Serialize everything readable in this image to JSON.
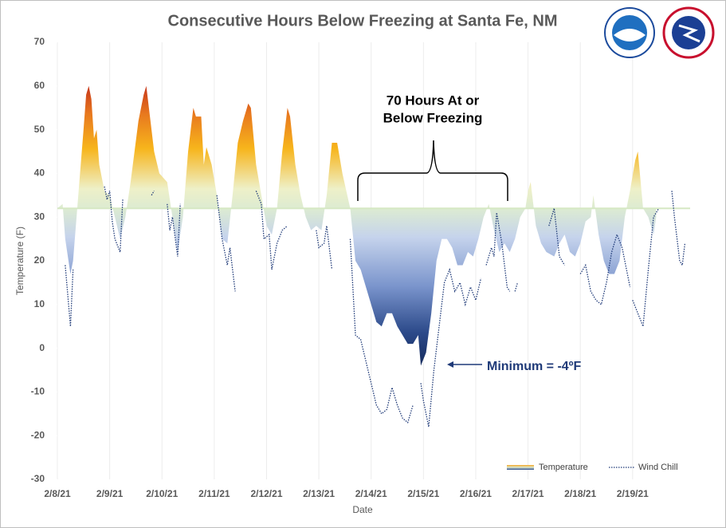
{
  "chart_data": {
    "type": "area",
    "title": "Consecutive Hours Below Freezing at Santa Fe, NM",
    "xlabel": "Date",
    "ylabel": "Temperature (F)",
    "threshold": 32,
    "xlim": [
      0,
      12.1
    ],
    "xticks": [
      {
        "value": 0,
        "label": "2/8/21"
      },
      {
        "value": 1,
        "label": "2/9/21"
      },
      {
        "value": 2,
        "label": "2/10/21"
      },
      {
        "value": 3,
        "label": "2/11/21"
      },
      {
        "value": 4,
        "label": "2/12/21"
      },
      {
        "value": 5,
        "label": "2/13/21"
      },
      {
        "value": 6,
        "label": "2/14/21"
      },
      {
        "value": 7,
        "label": "2/15/21"
      },
      {
        "value": 8,
        "label": "2/16/21"
      },
      {
        "value": 9,
        "label": "2/17/21"
      },
      {
        "value": 10,
        "label": "2/18/21"
      },
      {
        "value": 11,
        "label": "2/19/21"
      }
    ],
    "ylim": [
      -30,
      70
    ],
    "yticks": [
      -30,
      -20,
      -10,
      0,
      10,
      20,
      30,
      40,
      50,
      60,
      70
    ],
    "grid": "x",
    "legend": "lower right",
    "annotations": {
      "bracket": [
        "70 Hours At or",
        "Below Freezing"
      ],
      "minimum": "Minimum = -4ºF"
    },
    "series": [
      {
        "name": "Temperature",
        "color": "#f5a623",
        "x": [
          0,
          0.1,
          0.15,
          0.25,
          0.3,
          0.4,
          0.5,
          0.55,
          0.6,
          0.65,
          0.7,
          0.75,
          0.8,
          0.9,
          1.0,
          1.1,
          1.2,
          1.3,
          1.4,
          1.55,
          1.65,
          1.7,
          1.75,
          1.85,
          1.95,
          2.1,
          2.2,
          2.3,
          2.4,
          2.5,
          2.6,
          2.65,
          2.75,
          2.8,
          2.85,
          2.95,
          3.05,
          3.15,
          3.25,
          3.35,
          3.45,
          3.55,
          3.65,
          3.7,
          3.8,
          3.9,
          4.0,
          4.1,
          4.2,
          4.3,
          4.4,
          4.45,
          4.55,
          4.65,
          4.75,
          4.85,
          4.95,
          5.05,
          5.15,
          5.25,
          5.35,
          5.45,
          5.6,
          5.7,
          5.8,
          5.9,
          6.0,
          6.1,
          6.2,
          6.3,
          6.4,
          6.5,
          6.6,
          6.7,
          6.8,
          6.9,
          6.95,
          7.05,
          7.15,
          7.25,
          7.35,
          7.45,
          7.55,
          7.65,
          7.75,
          7.85,
          7.95,
          8.05,
          8.15,
          8.25,
          8.35,
          8.45,
          8.55,
          8.65,
          8.75,
          8.85,
          8.95,
          9.0,
          9.05,
          9.15,
          9.25,
          9.35,
          9.5,
          9.6,
          9.7,
          9.8,
          9.9,
          10.0,
          10.1,
          10.2,
          10.25,
          10.35,
          10.45,
          10.55,
          10.65,
          10.75,
          10.85,
          10.95,
          11.05,
          11.1,
          11.2,
          11.3,
          11.4,
          11.45
        ],
        "values": [
          32,
          33,
          25,
          17,
          20,
          35,
          50,
          58,
          60,
          57,
          48,
          50,
          42,
          36,
          35,
          30,
          25,
          30,
          38,
          52,
          58,
          60,
          55,
          45,
          40,
          38,
          30,
          22,
          30,
          45,
          55,
          53,
          53,
          42,
          46,
          42,
          35,
          25,
          24,
          35,
          47,
          52,
          56,
          55,
          42,
          35,
          28,
          26,
          32,
          45,
          55,
          53,
          42,
          35,
          30,
          27,
          28,
          27,
          35,
          47,
          47,
          40,
          32,
          20,
          18,
          14,
          10,
          6,
          5,
          8,
          8,
          5,
          3,
          1,
          1,
          3,
          -4,
          -1,
          8,
          20,
          25,
          25,
          23,
          19,
          19,
          22,
          21,
          25,
          30,
          33,
          27,
          22,
          24,
          22,
          25,
          30,
          32,
          36,
          38,
          28,
          24,
          22,
          21,
          24,
          26,
          22,
          21,
          24,
          29,
          30,
          35,
          26,
          20,
          17,
          17,
          20,
          30,
          36,
          43,
          45,
          32,
          30,
          26,
          30
        ]
      },
      {
        "name": "Wind Chill",
        "color": "#1f3a78",
        "x": [
          0.15,
          0.25,
          0.3,
          null,
          0.9,
          0.95,
          1.0,
          1.05,
          1.1,
          1.2,
          1.25,
          null,
          1.8,
          1.85,
          null,
          2.1,
          2.15,
          2.2,
          2.3,
          2.35,
          null,
          3.05,
          3.15,
          3.25,
          3.3,
          3.4,
          null,
          3.8,
          3.9,
          3.95,
          4.05,
          4.1,
          4.2,
          4.3,
          4.4,
          null,
          4.95,
          5.0,
          5.1,
          5.15,
          5.25,
          null,
          5.6,
          5.7,
          5.8,
          5.9,
          6.0,
          6.1,
          6.2,
          6.3,
          6.4,
          6.5,
          6.6,
          6.7,
          6.8,
          null,
          6.95,
          7.0,
          7.1,
          7.2,
          7.3,
          7.4,
          7.5,
          7.6,
          7.7,
          7.8,
          7.9,
          8.0,
          8.1,
          null,
          8.2,
          8.3,
          8.35,
          8.4,
          8.5,
          8.6,
          8.65,
          null,
          8.75,
          8.8,
          null,
          9.4,
          9.5,
          9.6,
          9.7,
          null,
          10.0,
          10.1,
          10.2,
          10.3,
          10.4,
          10.5,
          10.6,
          10.7,
          10.8,
          10.9,
          10.95,
          null,
          11.0,
          11.1,
          11.2,
          11.3,
          11.4,
          11.5,
          null,
          11.75,
          11.8,
          11.9,
          11.95,
          12.0
        ],
        "values": [
          19,
          5,
          18,
          null,
          37,
          34,
          36,
          29,
          25,
          22,
          34,
          null,
          35,
          36,
          null,
          33,
          27,
          30,
          21,
          33,
          null,
          35,
          25,
          19,
          23,
          13,
          null,
          36,
          33,
          25,
          26,
          18,
          24,
          27,
          28,
          null,
          27,
          23,
          24,
          28,
          18,
          null,
          25,
          3,
          2,
          -3,
          -8,
          -13,
          -15,
          -14,
          -9,
          -13,
          -16,
          -17,
          -13,
          null,
          -8,
          -12,
          -18,
          -5,
          5,
          15,
          18,
          13,
          15,
          10,
          14,
          11,
          16,
          null,
          19,
          23,
          21,
          31,
          24,
          14,
          13,
          null,
          13,
          15,
          null,
          28,
          32,
          21,
          19,
          null,
          17,
          19,
          13,
          11,
          10,
          15,
          22,
          26,
          23,
          17,
          14,
          null,
          11,
          8,
          5,
          18,
          30,
          32,
          null,
          36,
          30,
          20,
          19,
          24
        ]
      }
    ]
  }
}
